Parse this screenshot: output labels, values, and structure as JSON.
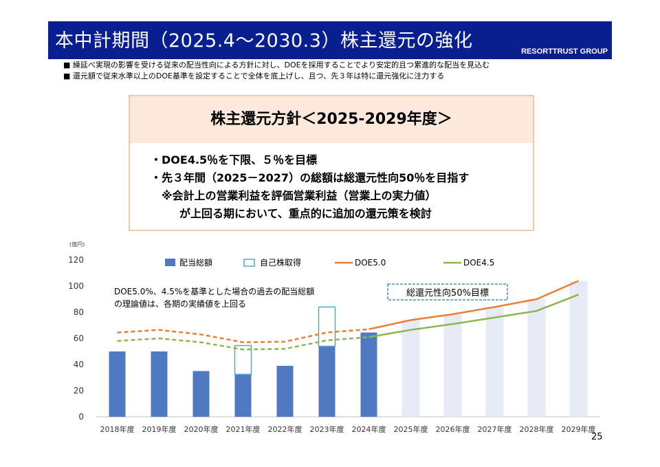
{
  "header": {
    "title": "本中計期間（2025.4～2030.3）株主還元の強化",
    "brand": "RESORTTRUST GROUP"
  },
  "bullets": [
    "■ 繰延べ実現の影響を受ける従来の配当性向による方針に対し、DOEを採用することでより安定的且つ累進的な配当を見込む",
    "■ 還元額で従来水準以上のDOE基準を設定することで全体を底上げし、且つ、先３年は特に還元強化に注力する"
  ],
  "policy": {
    "heading": "株主還元方針＜2025-2029年度＞",
    "line1": "・DOE4.5％を下限、５％を目標",
    "line2": "・先３年間（2025－2027）の総額は総還元性向50％を目指す",
    "line3": "※会計上の営業利益を評価営業利益（営業上の実力値）",
    "line4": "が上回る期において、重点的に追加の還元策を検討"
  },
  "chart_data": {
    "type": "bar",
    "unit_label": "(億円)",
    "categories": [
      "2018年度",
      "2019年度",
      "2020年度",
      "2021年度",
      "2022年度",
      "2023年度",
      "2024年度",
      "2025年度",
      "2026年度",
      "2027年度",
      "2028年度",
      "2029年度"
    ],
    "ylim": [
      0,
      120
    ],
    "yticks": [
      0,
      20,
      40,
      60,
      80,
      100,
      120
    ],
    "series": [
      {
        "name": "配当総額",
        "values": [
          50,
          50,
          35,
          32.5,
          39,
          54,
          64.5,
          null,
          null,
          null,
          null,
          null
        ],
        "color": "#4f7ac1"
      },
      {
        "name": "自己株取得",
        "values": [
          0,
          0,
          0,
          22,
          0,
          30,
          0,
          null,
          null,
          null,
          null,
          null
        ],
        "color": "#4bacc6"
      },
      {
        "name": "DOE5.0",
        "values": [
          64.5,
          66.5,
          63,
          57,
          57.5,
          64.5,
          67,
          74,
          78.5,
          84,
          90,
          104
        ],
        "color": "#ed7d31"
      },
      {
        "name": "DOE4.5",
        "values": [
          58,
          60,
          57,
          51.5,
          52,
          58.5,
          61,
          66.5,
          71,
          76,
          81,
          93.5
        ],
        "color": "#8db64d"
      }
    ],
    "forecast_band_values": [
      null,
      null,
      null,
      null,
      null,
      null,
      null,
      74,
      78.5,
      84,
      90,
      104
    ],
    "annotation": [
      "DOE5.0%、4.5%を基準とした場合の過去の配当総額",
      "の理論値は、各期の実績値を上回る"
    ],
    "target_label": "総還元性向50%目標"
  },
  "page_number": "25"
}
